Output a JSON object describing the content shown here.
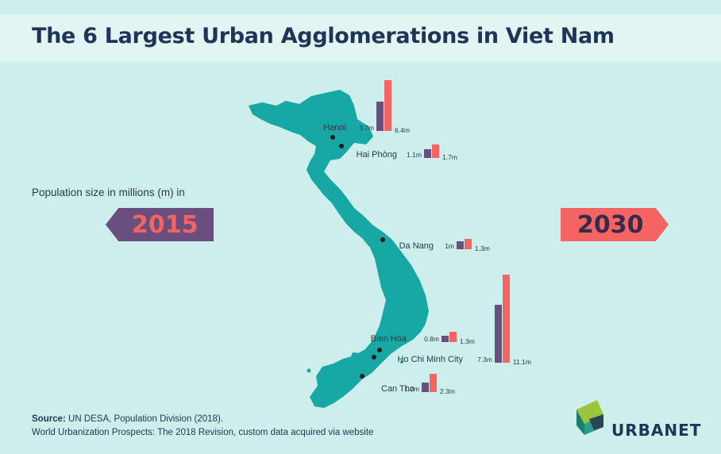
{
  "title": "The 6 Largest Urban Agglomerations in Viet Nam",
  "population_label": "Population size in millions (m) in",
  "year_left": "2015",
  "year_right": "2030",
  "source_label": "Source:",
  "source_text": "UN DESA, Population Division (2018).",
  "source_line2": "World Urbanization Prospects: The 2018 Revision, custom data acquired via website",
  "logo": "URBANET",
  "colors": {
    "y2015": "#6a4e7e",
    "y2030": "#f46462",
    "map": "#17a8a3",
    "background": "#cdeeeb"
  },
  "chart_data": {
    "type": "bar",
    "title": "The 6 Largest Urban Agglomerations in Viet Nam",
    "unit": "millions (m)",
    "categories": [
      "Hanoi",
      "Hai Phòng",
      "Da Nang",
      "Bien Hoa",
      "Ho Chi Minh City",
      "Can Tho"
    ],
    "series": [
      {
        "name": "2015",
        "values": [
          3.7,
          1.1,
          1.0,
          0.8,
          7.3,
          1.2
        ],
        "labels": [
          "3.7m",
          "1.1m",
          "1m",
          "0.8m",
          "7.3m",
          "1.2m"
        ]
      },
      {
        "name": "2030",
        "values": [
          6.4,
          1.7,
          1.3,
          1.3,
          11.1,
          2.3
        ],
        "labels": [
          "6.4m",
          "1.7m",
          "1.3m",
          "1.3m",
          "11.1m",
          "2.3m"
        ]
      }
    ]
  }
}
